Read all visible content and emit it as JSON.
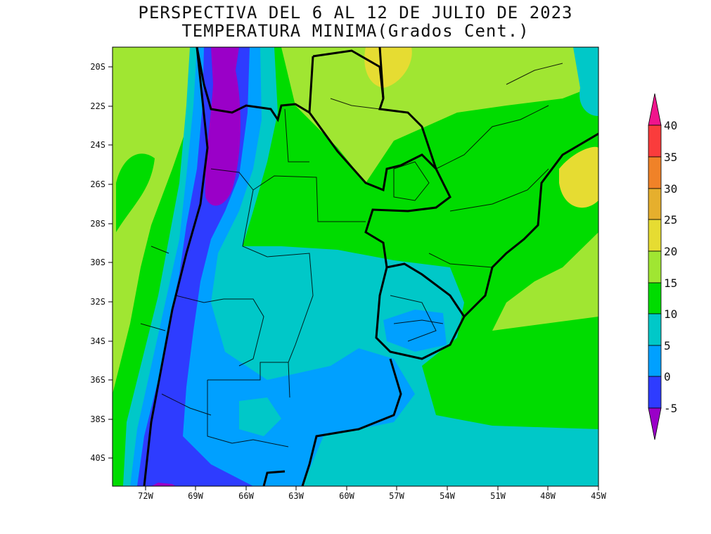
{
  "title": "PERSPECTIVA DEL 6 AL 12 DE JULIO DE 2023",
  "subtitle": "TEMPERATURA MINIMA(Grados Cent.)",
  "map": {
    "lon_labels": [
      "72W",
      "69W",
      "66W",
      "63W",
      "60W",
      "57W",
      "54W",
      "51W",
      "48W",
      "45W"
    ],
    "lat_labels": [
      "20S",
      "22S",
      "24S",
      "26S",
      "28S",
      "30S",
      "32S",
      "34S",
      "36S",
      "38S",
      "40S"
    ]
  },
  "legend": {
    "labels": [
      "40",
      "35",
      "30",
      "25",
      "20",
      "15",
      "10",
      "5",
      "0",
      "-5"
    ],
    "colors": {
      "lt_m5": "#9a00c8",
      "m5_0": "#2e3cff",
      "0_5": "#00a0ff",
      "5_10": "#00c8c8",
      "10_15": "#00dc00",
      "15_20": "#a0e632",
      "20_25": "#e6dc32",
      "25_30": "#e6af2d",
      "30_35": "#f08228",
      "35_40": "#fa3c3c",
      "gt_40": "#f0148c"
    }
  }
}
